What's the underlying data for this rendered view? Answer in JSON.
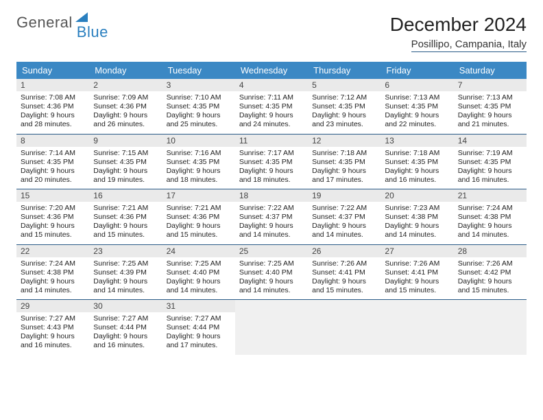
{
  "brand": {
    "part1": "General",
    "part2": "Blue"
  },
  "title": "December 2024",
  "location": "Posillipo, Campania, Italy",
  "colors": {
    "header_bg": "#3b88c4",
    "rule": "#295a87",
    "daynum_bg": "#eaeaea",
    "empty_bg": "#f0f0f0"
  },
  "dayNames": [
    "Sunday",
    "Monday",
    "Tuesday",
    "Wednesday",
    "Thursday",
    "Friday",
    "Saturday"
  ],
  "weeks": [
    [
      {
        "d": "1",
        "sr": "7:08 AM",
        "ss": "4:36 PM",
        "dl": "9 hours and 28 minutes."
      },
      {
        "d": "2",
        "sr": "7:09 AM",
        "ss": "4:36 PM",
        "dl": "9 hours and 26 minutes."
      },
      {
        "d": "3",
        "sr": "7:10 AM",
        "ss": "4:35 PM",
        "dl": "9 hours and 25 minutes."
      },
      {
        "d": "4",
        "sr": "7:11 AM",
        "ss": "4:35 PM",
        "dl": "9 hours and 24 minutes."
      },
      {
        "d": "5",
        "sr": "7:12 AM",
        "ss": "4:35 PM",
        "dl": "9 hours and 23 minutes."
      },
      {
        "d": "6",
        "sr": "7:13 AM",
        "ss": "4:35 PM",
        "dl": "9 hours and 22 minutes."
      },
      {
        "d": "7",
        "sr": "7:13 AM",
        "ss": "4:35 PM",
        "dl": "9 hours and 21 minutes."
      }
    ],
    [
      {
        "d": "8",
        "sr": "7:14 AM",
        "ss": "4:35 PM",
        "dl": "9 hours and 20 minutes."
      },
      {
        "d": "9",
        "sr": "7:15 AM",
        "ss": "4:35 PM",
        "dl": "9 hours and 19 minutes."
      },
      {
        "d": "10",
        "sr": "7:16 AM",
        "ss": "4:35 PM",
        "dl": "9 hours and 18 minutes."
      },
      {
        "d": "11",
        "sr": "7:17 AM",
        "ss": "4:35 PM",
        "dl": "9 hours and 18 minutes."
      },
      {
        "d": "12",
        "sr": "7:18 AM",
        "ss": "4:35 PM",
        "dl": "9 hours and 17 minutes."
      },
      {
        "d": "13",
        "sr": "7:18 AM",
        "ss": "4:35 PM",
        "dl": "9 hours and 16 minutes."
      },
      {
        "d": "14",
        "sr": "7:19 AM",
        "ss": "4:35 PM",
        "dl": "9 hours and 16 minutes."
      }
    ],
    [
      {
        "d": "15",
        "sr": "7:20 AM",
        "ss": "4:36 PM",
        "dl": "9 hours and 15 minutes."
      },
      {
        "d": "16",
        "sr": "7:21 AM",
        "ss": "4:36 PM",
        "dl": "9 hours and 15 minutes."
      },
      {
        "d": "17",
        "sr": "7:21 AM",
        "ss": "4:36 PM",
        "dl": "9 hours and 15 minutes."
      },
      {
        "d": "18",
        "sr": "7:22 AM",
        "ss": "4:37 PM",
        "dl": "9 hours and 14 minutes."
      },
      {
        "d": "19",
        "sr": "7:22 AM",
        "ss": "4:37 PM",
        "dl": "9 hours and 14 minutes."
      },
      {
        "d": "20",
        "sr": "7:23 AM",
        "ss": "4:38 PM",
        "dl": "9 hours and 14 minutes."
      },
      {
        "d": "21",
        "sr": "7:24 AM",
        "ss": "4:38 PM",
        "dl": "9 hours and 14 minutes."
      }
    ],
    [
      {
        "d": "22",
        "sr": "7:24 AM",
        "ss": "4:38 PM",
        "dl": "9 hours and 14 minutes."
      },
      {
        "d": "23",
        "sr": "7:25 AM",
        "ss": "4:39 PM",
        "dl": "9 hours and 14 minutes."
      },
      {
        "d": "24",
        "sr": "7:25 AM",
        "ss": "4:40 PM",
        "dl": "9 hours and 14 minutes."
      },
      {
        "d": "25",
        "sr": "7:25 AM",
        "ss": "4:40 PM",
        "dl": "9 hours and 14 minutes."
      },
      {
        "d": "26",
        "sr": "7:26 AM",
        "ss": "4:41 PM",
        "dl": "9 hours and 15 minutes."
      },
      {
        "d": "27",
        "sr": "7:26 AM",
        "ss": "4:41 PM",
        "dl": "9 hours and 15 minutes."
      },
      {
        "d": "28",
        "sr": "7:26 AM",
        "ss": "4:42 PM",
        "dl": "9 hours and 15 minutes."
      }
    ],
    [
      {
        "d": "29",
        "sr": "7:27 AM",
        "ss": "4:43 PM",
        "dl": "9 hours and 16 minutes."
      },
      {
        "d": "30",
        "sr": "7:27 AM",
        "ss": "4:44 PM",
        "dl": "9 hours and 16 minutes."
      },
      {
        "d": "31",
        "sr": "7:27 AM",
        "ss": "4:44 PM",
        "dl": "9 hours and 17 minutes."
      },
      null,
      null,
      null,
      null
    ]
  ],
  "labels": {
    "sunrise": "Sunrise: ",
    "sunset": "Sunset: ",
    "daylight": "Daylight: "
  }
}
